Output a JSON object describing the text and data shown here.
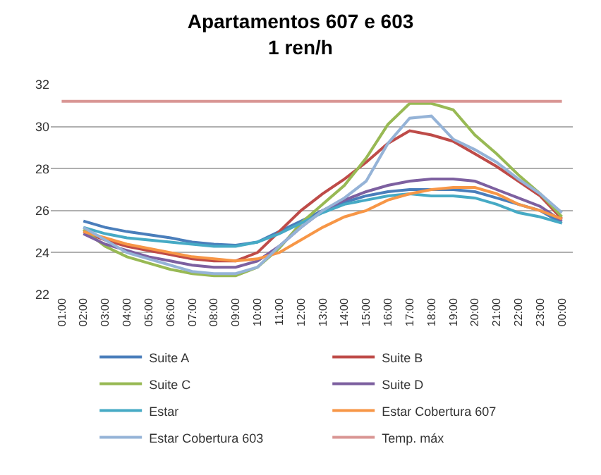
{
  "chart_data": {
    "type": "line",
    "title": "Apartamentos 607 e 603\n1 ren/h",
    "categories": [
      "01:00",
      "02:00",
      "03:00",
      "04:00",
      "05:00",
      "06:00",
      "07:00",
      "08:00",
      "09:00",
      "10:00",
      "11:00",
      "12:00",
      "13:00",
      "14:00",
      "15:00",
      "16:00",
      "17:00",
      "18:00",
      "19:00",
      "20:00",
      "21:00",
      "22:00",
      "23:00",
      "00:00"
    ],
    "series": [
      {
        "name": "Suite A",
        "color": "#4a7ebb",
        "values": [
          null,
          25.5,
          25.2,
          25.0,
          24.85,
          24.7,
          24.5,
          24.4,
          24.35,
          24.5,
          25.0,
          25.5,
          26.0,
          26.4,
          26.7,
          26.9,
          27.0,
          27.0,
          27.0,
          26.9,
          26.6,
          26.3,
          26.0,
          25.4
        ]
      },
      {
        "name": "Suite B",
        "color": "#be4b48",
        "values": [
          null,
          25.0,
          24.6,
          24.3,
          24.1,
          23.9,
          23.7,
          23.6,
          23.6,
          24.0,
          25.0,
          26.0,
          26.8,
          27.5,
          28.3,
          29.2,
          29.8,
          29.6,
          29.3,
          28.7,
          28.1,
          27.4,
          26.7,
          25.6
        ]
      },
      {
        "name": "Suite C",
        "color": "#98b954",
        "values": [
          null,
          25.1,
          24.3,
          23.8,
          23.5,
          23.2,
          23.0,
          22.9,
          22.9,
          23.3,
          24.2,
          25.4,
          26.3,
          27.2,
          28.5,
          30.1,
          31.1,
          31.1,
          30.8,
          29.6,
          28.7,
          27.7,
          26.8,
          25.7
        ]
      },
      {
        "name": "Suite D",
        "color": "#7d60a0",
        "values": [
          null,
          24.9,
          24.4,
          24.1,
          23.8,
          23.6,
          23.4,
          23.3,
          23.3,
          23.6,
          24.3,
          25.2,
          26.0,
          26.5,
          26.9,
          27.2,
          27.4,
          27.5,
          27.5,
          27.4,
          27.0,
          26.6,
          26.2,
          25.5
        ]
      },
      {
        "name": "Estar",
        "color": "#46aac5",
        "values": [
          null,
          25.2,
          24.9,
          24.7,
          24.6,
          24.5,
          24.4,
          24.3,
          24.3,
          24.5,
          24.9,
          25.4,
          25.9,
          26.3,
          26.5,
          26.7,
          26.8,
          26.7,
          26.7,
          26.6,
          26.3,
          25.9,
          25.7,
          25.4
        ]
      },
      {
        "name": "Estar Cobertura 607",
        "color": "#f79646",
        "values": [
          null,
          25.0,
          24.7,
          24.4,
          24.2,
          24.0,
          23.8,
          23.7,
          23.6,
          23.7,
          24.0,
          24.6,
          25.2,
          25.7,
          26.0,
          26.5,
          26.8,
          27.0,
          27.1,
          27.1,
          26.8,
          26.3,
          26.0,
          25.6
        ]
      },
      {
        "name": "Estar Cobertura 603",
        "color": "#95b3d7",
        "values": [
          null,
          25.2,
          24.6,
          24.0,
          23.7,
          23.4,
          23.1,
          23.0,
          23.0,
          23.3,
          24.3,
          25.2,
          26.0,
          26.6,
          27.4,
          29.2,
          30.4,
          30.5,
          29.4,
          28.9,
          28.3,
          27.5,
          26.8,
          25.9
        ]
      },
      {
        "name": "Temp. máx",
        "color": "#d99694",
        "values": [
          31.2,
          31.2,
          31.2,
          31.2,
          31.2,
          31.2,
          31.2,
          31.2,
          31.2,
          31.2,
          31.2,
          31.2,
          31.2,
          31.2,
          31.2,
          31.2,
          31.2,
          31.2,
          31.2,
          31.2,
          31.2,
          31.2,
          31.2,
          31.2
        ]
      }
    ],
    "ylim": [
      22,
      32
    ],
    "yticks": [
      22,
      24,
      26,
      28,
      30,
      32
    ],
    "grid": "y",
    "legend": "bottom",
    "marker": "none",
    "line_style": "solid"
  }
}
